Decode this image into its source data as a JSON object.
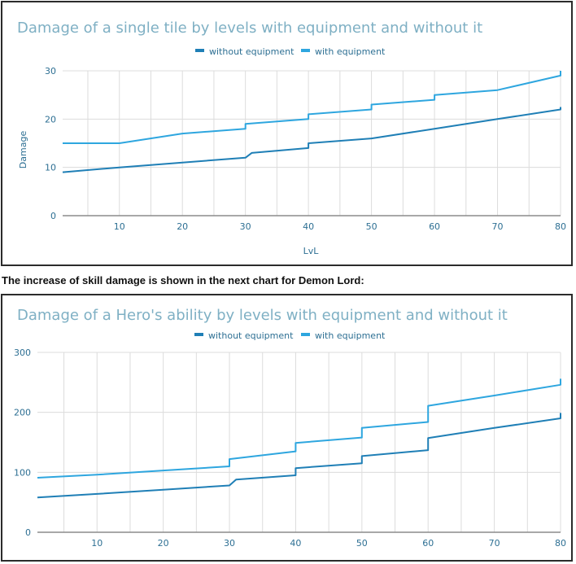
{
  "caption": "The increase of skill damage is shown in the next chart for Demon Lord:",
  "colors": {
    "without": "#1f7fb6",
    "with": "#2ea6df",
    "grid": "#dcdcdc",
    "axis": "#8c8c8c",
    "title": "#7fb0c4"
  },
  "chart_data": [
    {
      "type": "line",
      "title": "Damage of a single tile by levels with equipment and without it",
      "xlabel": "LvL",
      "ylabel": "Damage",
      "xlim": [
        1,
        80
      ],
      "ylim": [
        0,
        30
      ],
      "xticks": [
        10,
        20,
        30,
        40,
        50,
        60,
        70,
        80
      ],
      "yticks": [
        0,
        10,
        20,
        30
      ],
      "legend": "top-center",
      "series": [
        {
          "name": "without equipment",
          "color": "#1f7fb6",
          "points": [
            [
              1,
              9
            ],
            [
              10,
              10
            ],
            [
              20,
              11
            ],
            [
              30,
              12
            ],
            [
              31,
              13
            ],
            [
              40,
              14
            ],
            [
              40,
              15
            ],
            [
              50,
              16
            ],
            [
              60,
              18
            ],
            [
              70,
              20
            ],
            [
              80,
              22
            ],
            [
              80,
              22.5
            ]
          ]
        },
        {
          "name": "with equipment",
          "color": "#2ea6df",
          "points": [
            [
              1,
              15
            ],
            [
              10,
              15
            ],
            [
              20,
              17
            ],
            [
              30,
              18
            ],
            [
              30,
              19
            ],
            [
              40,
              20
            ],
            [
              40,
              21
            ],
            [
              50,
              22
            ],
            [
              50,
              23
            ],
            [
              60,
              24
            ],
            [
              60,
              25
            ],
            [
              70,
              26
            ],
            [
              80,
              29
            ],
            [
              80,
              30
            ]
          ]
        }
      ]
    },
    {
      "type": "line",
      "title": "Damage of a Hero's ability by levels with equipment and without it",
      "xlabel": "",
      "ylabel": "",
      "xlim": [
        1,
        80
      ],
      "ylim": [
        0,
        300
      ],
      "xticks": [
        10,
        20,
        30,
        40,
        50,
        60,
        70,
        80
      ],
      "yticks": [
        0,
        100,
        200,
        300
      ],
      "legend": "top-center",
      "series": [
        {
          "name": "without equipment",
          "color": "#1f7fb6",
          "points": [
            [
              1,
              58
            ],
            [
              10,
              64
            ],
            [
              20,
              71
            ],
            [
              30,
              78
            ],
            [
              31,
              88
            ],
            [
              40,
              95
            ],
            [
              40,
              107
            ],
            [
              50,
              115
            ],
            [
              50,
              127
            ],
            [
              60,
              137
            ],
            [
              60,
              157
            ],
            [
              70,
              174
            ],
            [
              80,
              190
            ],
            [
              80,
              199
            ]
          ]
        },
        {
          "name": "with equipment",
          "color": "#2ea6df",
          "points": [
            [
              1,
              91
            ],
            [
              10,
              96
            ],
            [
              20,
              103
            ],
            [
              30,
              110
            ],
            [
              30,
              122
            ],
            [
              40,
              135
            ],
            [
              40,
              149
            ],
            [
              50,
              158
            ],
            [
              50,
              174
            ],
            [
              60,
              184
            ],
            [
              60,
              211
            ],
            [
              70,
              228
            ],
            [
              80,
              246
            ],
            [
              80,
              256
            ]
          ]
        }
      ]
    }
  ]
}
